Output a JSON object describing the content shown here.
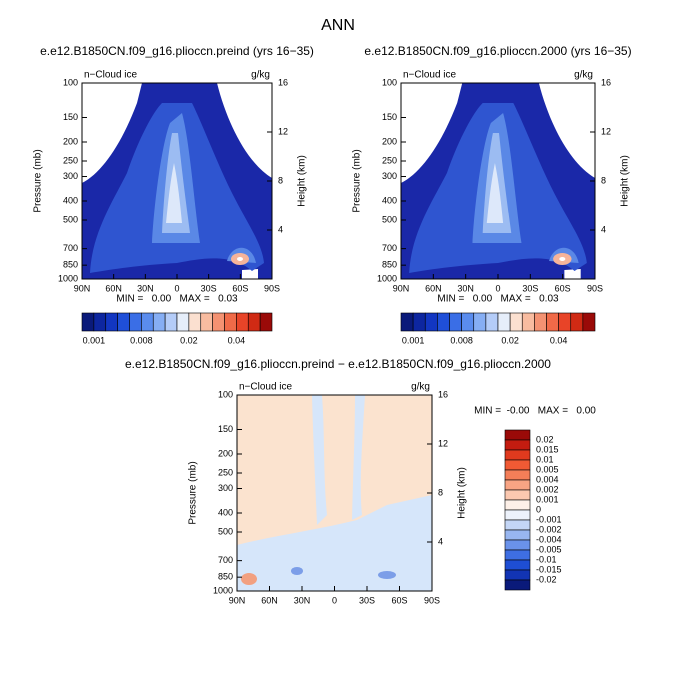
{
  "figure_title": "ANN",
  "chart_data": [
    {
      "type": "contour",
      "title": "e.e12.B1850CN.f09_g16.plioccn.preind (yrs 16−35)",
      "corner_left": "n−Cloud ice",
      "corner_right": "g/kg",
      "ylabel": "Pressure (mb)",
      "y2label": "Height (km)",
      "xlim": [
        90,
        -90
      ],
      "xticks": [
        {
          "value": 90,
          "label": "90N"
        },
        {
          "value": 60,
          "label": "60N"
        },
        {
          "value": 30,
          "label": "30N"
        },
        0,
        {
          "value": -30,
          "label": "30S"
        },
        {
          "value": -60,
          "label": "60S"
        },
        {
          "value": -90,
          "label": "90S"
        }
      ],
      "ylim": [
        1000,
        100
      ],
      "yscale": "log",
      "yticks": [
        100,
        150,
        200,
        250,
        300,
        400,
        500,
        700,
        850,
        1000
      ],
      "y2lim": [
        0,
        16
      ],
      "y2ticks": [
        4,
        8,
        12,
        16
      ],
      "stats": "MIN =   0.00   MAX =   0.03",
      "colorbar": {
        "orientation": "horizontal",
        "colors": [
          "#0a1a7a",
          "#0d26a0",
          "#1236c2",
          "#1f4fd8",
          "#3a6ee6",
          "#5a8cee",
          "#86aef4",
          "#b4ccf8",
          "#e6eefa",
          "#fbe0d0",
          "#f8bca0",
          "#f49272",
          "#f06a48",
          "#e84428",
          "#d02a14",
          "#9a0a08"
        ],
        "labels": [
          0.001,
          0.008,
          0.02,
          0.04
        ]
      }
    },
    {
      "type": "contour",
      "title": "e.e12.B1850CN.f09_g16.plioccn.2000 (yrs 16−35)",
      "corner_left": "n−Cloud ice",
      "corner_right": "g/kg",
      "ylabel": "Pressure (mb)",
      "y2label": "Height (km)",
      "xlim": [
        90,
        -90
      ],
      "xticks": [
        {
          "value": 90,
          "label": "90N"
        },
        {
          "value": 60,
          "label": "60N"
        },
        {
          "value": 30,
          "label": "30N"
        },
        0,
        {
          "value": -30,
          "label": "30S"
        },
        {
          "value": -60,
          "label": "60S"
        },
        {
          "value": -90,
          "label": "90S"
        }
      ],
      "ylim": [
        1000,
        100
      ],
      "yscale": "log",
      "yticks": [
        100,
        150,
        200,
        250,
        300,
        400,
        500,
        700,
        850,
        1000
      ],
      "y2lim": [
        0,
        16
      ],
      "y2ticks": [
        4,
        8,
        12,
        16
      ],
      "stats": "MIN =   0.00   MAX =   0.03",
      "colorbar": {
        "orientation": "horizontal",
        "colors": [
          "#0a1a7a",
          "#0d26a0",
          "#1236c2",
          "#1f4fd8",
          "#3a6ee6",
          "#5a8cee",
          "#86aef4",
          "#b4ccf8",
          "#e6eefa",
          "#fbe0d0",
          "#f8bca0",
          "#f49272",
          "#f06a48",
          "#e84428",
          "#d02a14",
          "#9a0a08"
        ],
        "labels": [
          0.001,
          0.008,
          0.02,
          0.04
        ]
      }
    },
    {
      "type": "contour",
      "title": "e.e12.B1850CN.f09_g16.plioccn.preind − e.e12.B1850CN.f09_g16.plioccn.2000",
      "corner_left": "n−Cloud ice",
      "corner_right": "g/kg",
      "ylabel": "Pressure (mb)",
      "y2label": "Height (km)",
      "xlim": [
        90,
        -90
      ],
      "xticks": [
        {
          "value": 90,
          "label": "90N"
        },
        {
          "value": 60,
          "label": "60N"
        },
        {
          "value": 30,
          "label": "30N"
        },
        0,
        {
          "value": -30,
          "label": "30S"
        },
        {
          "value": -60,
          "label": "60S"
        },
        {
          "value": -90,
          "label": "90S"
        }
      ],
      "ylim": [
        1000,
        100
      ],
      "yscale": "log",
      "yticks": [
        100,
        150,
        200,
        250,
        300,
        400,
        500,
        700,
        850,
        1000
      ],
      "y2lim": [
        0,
        16
      ],
      "y2ticks": [
        4,
        8,
        12,
        16
      ],
      "stats": "MIN =  -0.00   MAX =   0.00",
      "colorbar": {
        "orientation": "vertical",
        "colors": [
          "#9a0a08",
          "#c41c10",
          "#e03a1e",
          "#f05a34",
          "#f47e58",
          "#f8a484",
          "#fbc8b0",
          "#fdf0e8",
          "#edf2fb",
          "#c4d6f6",
          "#98b6f0",
          "#6a92ea",
          "#3e6ee2",
          "#1e4ed4",
          "#1234b4",
          "#0a1a7a"
        ],
        "labels": [
          0.02,
          0.015,
          0.01,
          0.005,
          0.004,
          0.002,
          0.001,
          0,
          -0.001,
          -0.002,
          -0.004,
          -0.005,
          -0.01,
          -0.015,
          -0.02
        ]
      }
    }
  ]
}
